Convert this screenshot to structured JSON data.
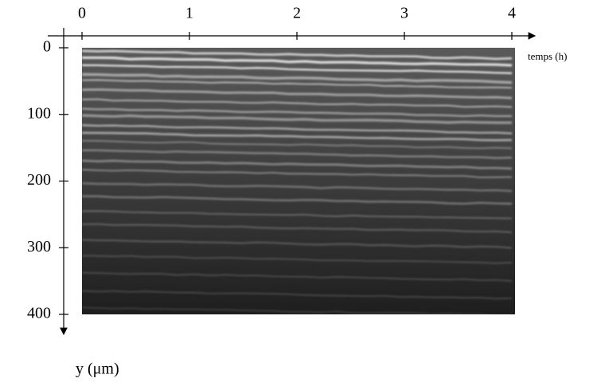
{
  "chart_data": {
    "type": "image",
    "xlabel": "temps (h)",
    "ylabel": "y (μm)",
    "xlim": [
      0,
      4
    ],
    "xticks": [
      0,
      1,
      2,
      3,
      4
    ],
    "ylim": [
      0,
      400
    ],
    "yticks": [
      0,
      100,
      200,
      300,
      400
    ]
  }
}
